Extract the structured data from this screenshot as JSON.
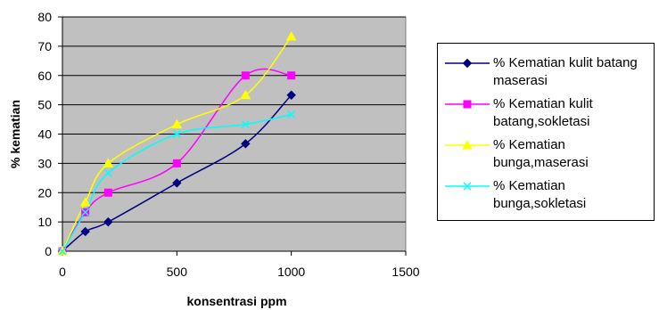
{
  "chart_data": {
    "type": "line",
    "xlabel": "konsentrasi ppm",
    "ylabel": "% kematian",
    "xlim": [
      0,
      1500
    ],
    "ylim": [
      0,
      80
    ],
    "xticks": [
      "0",
      "500",
      "1000",
      "1500"
    ],
    "yticks": [
      "0",
      "10",
      "20",
      "30",
      "40",
      "50",
      "60",
      "70",
      "80"
    ],
    "grid": "horizontal",
    "plot_background": "#c0c0c0",
    "legend_position": "right",
    "series": [
      {
        "name": "% Kematian kulit batang maserasi",
        "color": "#000080",
        "marker": "diamond",
        "x": [
          0,
          100,
          200,
          500,
          800,
          1000
        ],
        "y": [
          0,
          6.7,
          10,
          23.3,
          36.7,
          53.3
        ]
      },
      {
        "name": "% Kematian kulit batang,sokletasi",
        "color": "#ff00ff",
        "marker": "square",
        "x": [
          0,
          100,
          200,
          500,
          800,
          1000
        ],
        "y": [
          0,
          13.3,
          20,
          30,
          60,
          60
        ]
      },
      {
        "name": "% Kematian bunga,maserasi",
        "color": "#ffff00",
        "marker": "triangle",
        "x": [
          0,
          100,
          200,
          500,
          800,
          1000
        ],
        "y": [
          0,
          16.7,
          30,
          43.3,
          53.3,
          73.3
        ]
      },
      {
        "name": "% Kematian bunga,sokletasi",
        "color": "#00ffff",
        "marker": "x",
        "x": [
          0,
          100,
          200,
          500,
          800,
          1000
        ],
        "y": [
          0,
          13.3,
          26.7,
          40,
          43.3,
          46.7
        ]
      }
    ]
  },
  "legend": {
    "items": [
      {
        "line1": "% Kematian kulit batang",
        "line2": "maserasi"
      },
      {
        "line1": "% Kematian kulit",
        "line2": "batang,sokletasi"
      },
      {
        "line1": "% Kematian",
        "line2": "bunga,maserasi"
      },
      {
        "line1": "% Kematian",
        "line2": "bunga,sokletasi"
      }
    ]
  }
}
